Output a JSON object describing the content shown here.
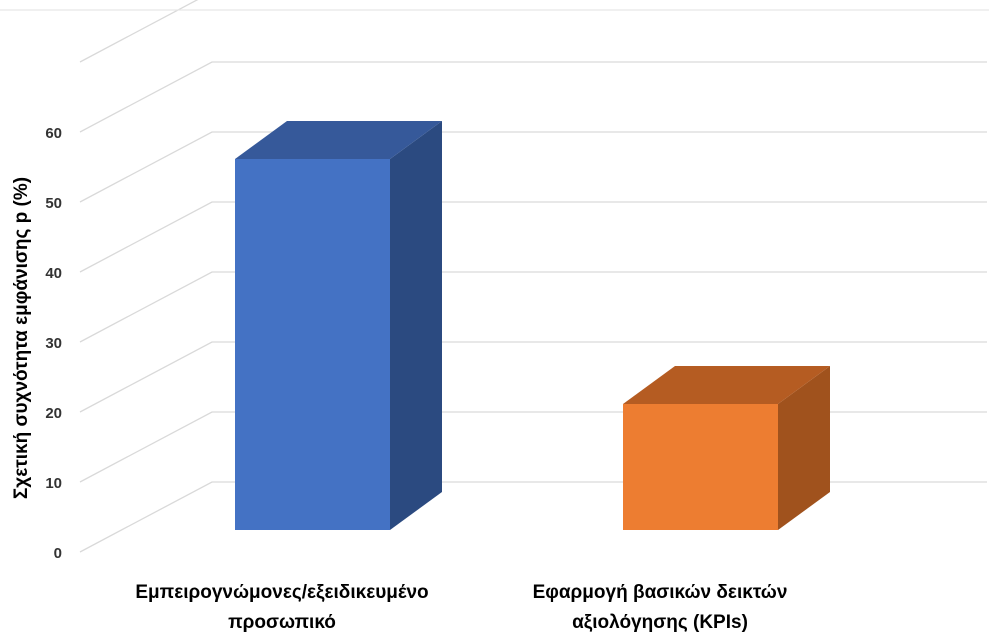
{
  "chart_data": {
    "type": "bar",
    "style": "3d-column",
    "title": "",
    "xlabel": "",
    "ylabel": "Σχετική συχνότητα εμφάνισης p (%)",
    "ylim": [
      0,
      60
    ],
    "yticks": [
      "0",
      "10",
      "20",
      "30",
      "40",
      "50",
      "60"
    ],
    "grid": true,
    "legend": "none",
    "categories": [
      [
        "Εμπειρογνώμονες/εξειδικευμένο",
        "προσωπικό"
      ],
      [
        "Εφαρμογή βασικών δεικτών",
        "αξιολόγησης (KPIs)"
      ]
    ],
    "values": [
      53,
      18
    ],
    "colors": [
      "#4472C4",
      "#ED7D31"
    ],
    "side_colors": [
      "#2B4A80",
      "#A0521D"
    ],
    "top_colors": [
      "#36599A",
      "#B55C22"
    ]
  }
}
